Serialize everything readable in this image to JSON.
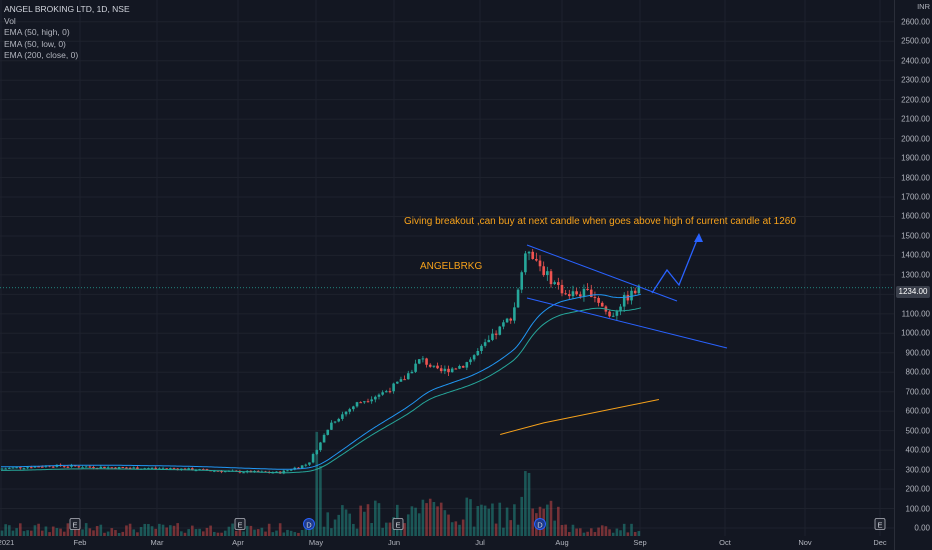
{
  "legend": {
    "title": "ANGEL BROKING LTD, 1D, NSE",
    "vol": "Vol",
    "ema1": "EMA (50, high, 0)",
    "ema2": "EMA (50, low, 0)",
    "ema3": "EMA (200, close, 0)"
  },
  "colors": {
    "background": "#131722",
    "up": "#26a69a",
    "down": "#ef5350",
    "trendline": "#2962ff",
    "ema50": "#2196f3",
    "ema_low": "#26a69a",
    "ema200": "#f7a21b",
    "annotation": "#f7a21b"
  },
  "chart_data": {
    "type": "candlestick",
    "ylabel": "INR",
    "ylim": [
      0,
      2700
    ],
    "yticks": [
      0,
      100,
      200,
      300,
      400,
      500,
      600,
      700,
      800,
      900,
      1000,
      1100,
      1200,
      1300,
      1400,
      1500,
      1600,
      1700,
      1800,
      1900,
      2000,
      2100,
      2200,
      2300,
      2400,
      2500,
      2600
    ],
    "xticks": [
      "2021",
      "Feb",
      "Mar",
      "Apr",
      "May",
      "Jun",
      "Jul",
      "Aug",
      "Sep",
      "Oct",
      "Nov",
      "Dec"
    ],
    "last_price": "1234.00",
    "close_path": [
      [
        "2021-01-01",
        305
      ],
      [
        "2021-01-20",
        320
      ],
      [
        "2021-02-15",
        310
      ],
      [
        "2021-03-10",
        305
      ],
      [
        "2021-04-01",
        290
      ],
      [
        "2021-04-20",
        285
      ],
      [
        "2021-05-01",
        330
      ],
      [
        "2021-05-04",
        400
      ],
      [
        "2021-05-10",
        540
      ],
      [
        "2021-05-20",
        640
      ],
      [
        "2021-05-31",
        700
      ],
      [
        "2021-06-07",
        760
      ],
      [
        "2021-06-14",
        870
      ],
      [
        "2021-06-21",
        800
      ],
      [
        "2021-07-01",
        840
      ],
      [
        "2021-07-10",
        950
      ],
      [
        "2021-07-20",
        1100
      ],
      [
        "2021-07-23",
        1300
      ],
      [
        "2021-07-26",
        1440
      ],
      [
        "2021-08-02",
        1300
      ],
      [
        "2021-08-10",
        1200
      ],
      [
        "2021-08-20",
        1210
      ],
      [
        "2021-08-27",
        1080
      ],
      [
        "2021-09-01",
        1170
      ],
      [
        "2021-09-08",
        1234
      ]
    ],
    "ema200": [
      [
        "2021-07-15",
        480
      ],
      [
        "2021-08-01",
        540
      ],
      [
        "2021-09-15",
        660
      ]
    ],
    "annotations": {
      "symbol": "ANGELBRKG",
      "note": "Giving breakout ,can buy at next candle when goes above high of current candle at 1260"
    },
    "event_markers": [
      "E",
      "E",
      "D",
      "E",
      "D",
      "E"
    ]
  }
}
